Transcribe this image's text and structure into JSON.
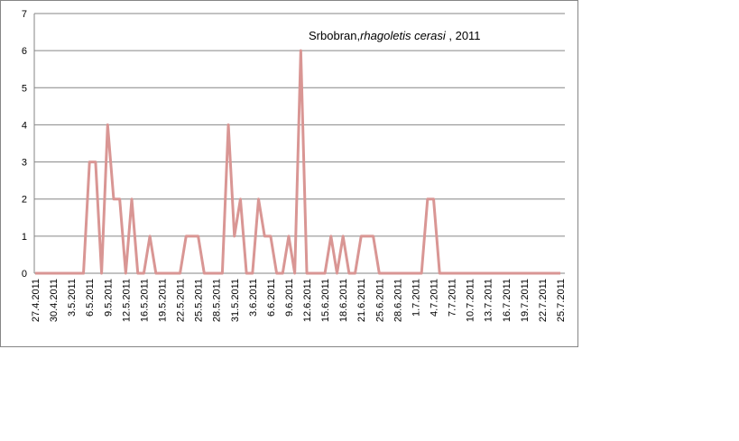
{
  "chart_data": {
    "type": "line",
    "title": {
      "place": "Srbobran,",
      "species": "rhagoletis cerasi",
      "year": " , 2011"
    },
    "categories": [
      "27.4.2011",
      null,
      null,
      "30.4.2011",
      null,
      null,
      "3.5.2011",
      null,
      null,
      "6.5.2011",
      null,
      null,
      "9.5.2011",
      null,
      null,
      "12.5.2011",
      null,
      null,
      "16.5.2011",
      null,
      null,
      "19.5.2011",
      null,
      null,
      "22.5.2011",
      null,
      null,
      "25.5.2011",
      null,
      null,
      "28.5.2011",
      null,
      null,
      "31.5.2011",
      null,
      null,
      "3.6.2011",
      null,
      null,
      "6.6.2011",
      null,
      null,
      "9.6.2011",
      null,
      null,
      "12.6.2011",
      null,
      null,
      "15.6.2011",
      null,
      null,
      "18.6.2011",
      null,
      null,
      "21.6.2011",
      null,
      null,
      "25.6.2011",
      null,
      null,
      "28.6.2011",
      null,
      null,
      "1.7.2011",
      null,
      null,
      "4.7.2011",
      null,
      null,
      "7.7.2011",
      null,
      null,
      "10.7.2011",
      null,
      null,
      "13.7.2011",
      null,
      null,
      "16.7.2011",
      null,
      null,
      "19.7.2011",
      null,
      null,
      "22.7.2011",
      null,
      null,
      "25.7.2011"
    ],
    "values": [
      0,
      0,
      0,
      0,
      0,
      0,
      0,
      0,
      0,
      3,
      3,
      0,
      4,
      2,
      2,
      0,
      2,
      0,
      0,
      1,
      0,
      0,
      0,
      0,
      0,
      1,
      1,
      1,
      0,
      0,
      0,
      0,
      4,
      1,
      2,
      0,
      0,
      2,
      1,
      1,
      0,
      0,
      1,
      0,
      6,
      0,
      0,
      0,
      0,
      1,
      0,
      1,
      0,
      0,
      1,
      1,
      1,
      0,
      0,
      0,
      0,
      0,
      0,
      0,
      0,
      2,
      2,
      0,
      0,
      0,
      0,
      0,
      0,
      0,
      0,
      0,
      0,
      0,
      0,
      0,
      0,
      0,
      0,
      0,
      0,
      0,
      0,
      0
    ],
    "color": "#d99694",
    "ylim": [
      0,
      7
    ],
    "yticks": [
      0,
      1,
      2,
      3,
      4,
      5,
      6,
      7
    ],
    "grid": true
  }
}
